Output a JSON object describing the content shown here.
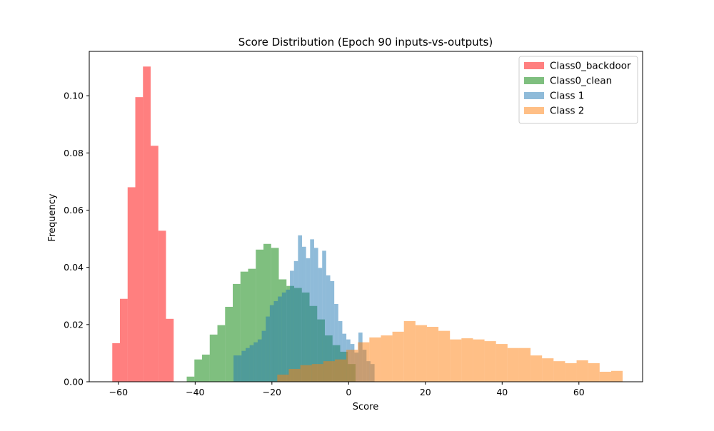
{
  "chart_data": {
    "type": "histogram",
    "title": "Score Distribution (Epoch 90 inputs-vs-outputs)",
    "xlabel": "Score",
    "ylabel": "Frequency",
    "xlim": [
      -67.6,
      76.6
    ],
    "ylim": [
      0,
      0.1155
    ],
    "xticks": [
      "−60",
      "−40",
      "−20",
      "0",
      "20",
      "40",
      "60"
    ],
    "xtick_values": [
      -60,
      -40,
      -20,
      0,
      20,
      40,
      60
    ],
    "yticks": [
      "0.00",
      "0.02",
      "0.04",
      "0.06",
      "0.08",
      "0.10"
    ],
    "ytick_values": [
      0,
      0.02,
      0.04,
      0.06,
      0.08,
      0.1
    ],
    "legend_position": "top-right",
    "grid": false,
    "series": [
      {
        "name": "Class0_backdoor",
        "color": "#ff0000",
        "alpha": 0.5,
        "bin_edges": [
          -61.6,
          -59.6,
          -57.6,
          -55.6,
          -53.6,
          -51.6,
          -49.6,
          -47.6,
          -45.6,
          -43.6
        ],
        "values": [
          0.0135,
          0.029,
          0.068,
          0.0995,
          0.1102,
          0.0825,
          0.0528,
          0.022,
          0.0
        ]
      },
      {
        "name": "Class0_clean",
        "color": "#008000",
        "alpha": 0.5,
        "bin_edges": [
          -42.2,
          -40.2,
          -38.2,
          -36.2,
          -34.2,
          -32.2,
          -30.2,
          -28.2,
          -26.2,
          -24.2,
          -22.2,
          -20.2,
          -18.2,
          -16.2,
          -14.2,
          -12.2,
          -10.2,
          -8.2,
          -6.2,
          -4.2,
          -2.2,
          -0.2,
          1.8
        ],
        "values": [
          0.0018,
          0.0078,
          0.0095,
          0.0165,
          0.0198,
          0.0262,
          0.0342,
          0.0385,
          0.0395,
          0.0462,
          0.0482,
          0.0468,
          0.0358,
          0.0335,
          0.0328,
          0.0312,
          0.0265,
          0.0218,
          0.0162,
          0.0128,
          0.0105,
          0.0062
        ]
      },
      {
        "name": "Class 1",
        "color": "#1f77b4",
        "alpha": 0.5,
        "bin_edges": [
          -30.0,
          -28.95,
          -27.9,
          -26.85,
          -25.8,
          -24.75,
          -23.7,
          -22.65,
          -21.6,
          -20.55,
          -19.5,
          -18.45,
          -17.4,
          -16.35,
          -15.3,
          -14.25,
          -13.2,
          -12.15,
          -11.1,
          -10.05,
          -9.0,
          -7.95,
          -6.9,
          -5.85,
          -4.8,
          -3.75,
          -2.7,
          -1.65,
          -0.6,
          0.45,
          1.5,
          2.55,
          3.6,
          4.65,
          5.7,
          6.75
        ],
        "values": [
          0.0092,
          0.0092,
          0.0108,
          0.0118,
          0.0128,
          0.0138,
          0.0148,
          0.0178,
          0.0228,
          0.0268,
          0.0282,
          0.0298,
          0.0312,
          0.0322,
          0.0388,
          0.0422,
          0.0512,
          0.0472,
          0.0432,
          0.0498,
          0.0468,
          0.0398,
          0.0458,
          0.0372,
          0.0352,
          0.0272,
          0.0212,
          0.0168,
          0.0148,
          0.0132,
          0.0102,
          0.0172,
          0.0112,
          0.0072,
          0.0062
        ]
      },
      {
        "name": "Class 2",
        "color": "#ff7f0e",
        "alpha": 0.5,
        "bin_edges": [
          -18.6,
          -15.6,
          -12.6,
          -9.6,
          -6.6,
          -3.6,
          -0.6,
          2.4,
          5.4,
          8.4,
          11.4,
          14.4,
          17.4,
          20.4,
          23.4,
          26.4,
          29.4,
          32.4,
          35.4,
          38.4,
          41.4,
          44.4,
          47.4,
          50.4,
          53.4,
          56.4,
          59.4,
          62.4,
          65.4,
          68.4,
          71.4
        ],
        "values": [
          0.0025,
          0.0045,
          0.0058,
          0.0062,
          0.0072,
          0.0078,
          0.0112,
          0.0138,
          0.0155,
          0.0162,
          0.0175,
          0.0212,
          0.0198,
          0.0192,
          0.0178,
          0.0148,
          0.0152,
          0.0148,
          0.0142,
          0.0132,
          0.0118,
          0.0118,
          0.0092,
          0.0082,
          0.0072,
          0.0065,
          0.0075,
          0.0065,
          0.0035,
          0.0038
        ]
      }
    ]
  }
}
